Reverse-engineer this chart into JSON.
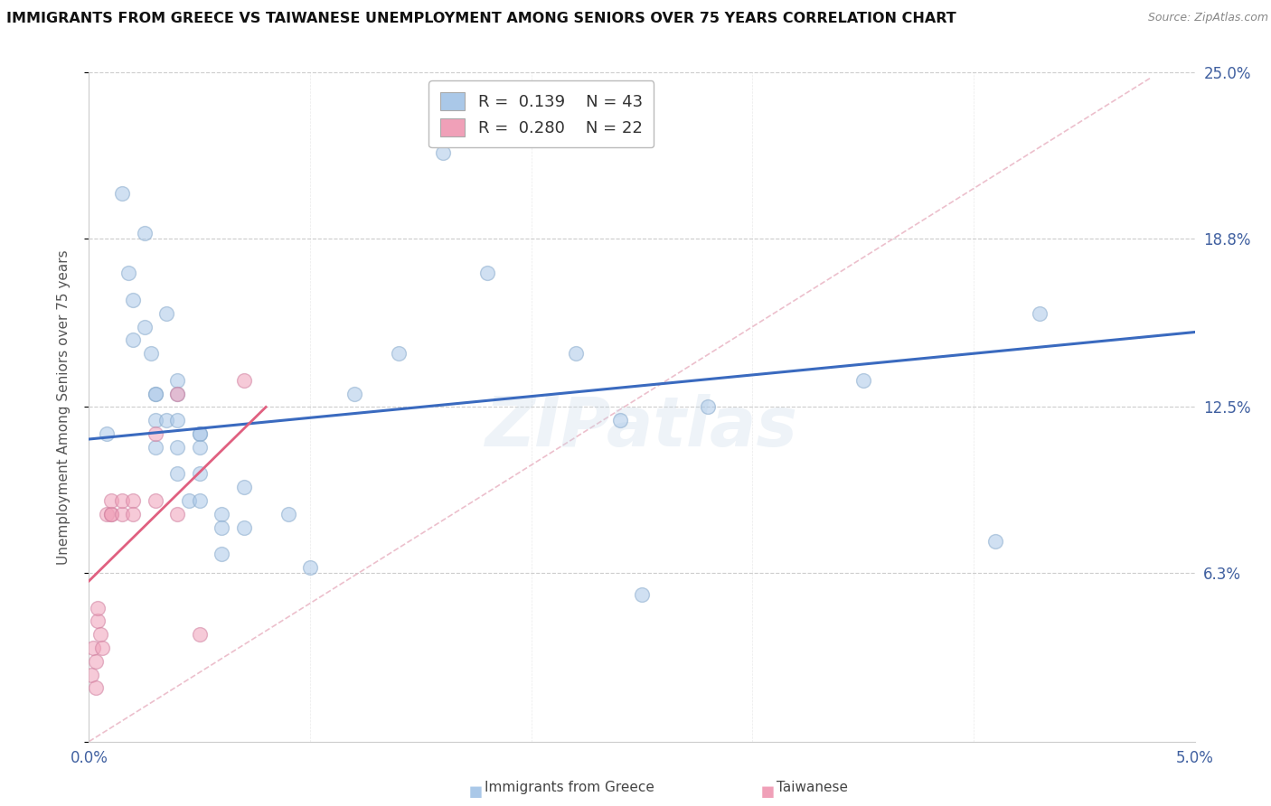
{
  "title": "IMMIGRANTS FROM GREECE VS TAIWANESE UNEMPLOYMENT AMONG SENIORS OVER 75 YEARS CORRELATION CHART",
  "source": "Source: ZipAtlas.com",
  "ylabel": "Unemployment Among Seniors over 75 years",
  "x_min": 0.0,
  "x_max": 0.05,
  "y_min": 0.0,
  "y_max": 0.25,
  "x_ticks": [
    0.0,
    0.01,
    0.02,
    0.03,
    0.04,
    0.05
  ],
  "x_tick_labels": [
    "0.0%",
    "",
    "",
    "",
    "",
    "5.0%"
  ],
  "y_ticks": [
    0.0,
    0.063,
    0.125,
    0.188,
    0.25
  ],
  "y_tick_labels_right": [
    "",
    "6.3%",
    "12.5%",
    "18.8%",
    "25.0%"
  ],
  "legend_line1": "R =  0.139    N = 43",
  "legend_line2": "R =  0.280    N = 22",
  "blue_scatter_x": [
    0.0008,
    0.0015,
    0.0018,
    0.002,
    0.002,
    0.0025,
    0.0025,
    0.0028,
    0.003,
    0.003,
    0.003,
    0.003,
    0.0035,
    0.0035,
    0.004,
    0.004,
    0.004,
    0.004,
    0.004,
    0.0045,
    0.005,
    0.005,
    0.005,
    0.005,
    0.005,
    0.006,
    0.006,
    0.006,
    0.007,
    0.007,
    0.009,
    0.01,
    0.012,
    0.014,
    0.016,
    0.018,
    0.022,
    0.024,
    0.025,
    0.028,
    0.035,
    0.041,
    0.043
  ],
  "blue_scatter_y": [
    0.115,
    0.205,
    0.175,
    0.165,
    0.15,
    0.19,
    0.155,
    0.145,
    0.13,
    0.13,
    0.12,
    0.11,
    0.16,
    0.12,
    0.135,
    0.13,
    0.12,
    0.11,
    0.1,
    0.09,
    0.115,
    0.115,
    0.11,
    0.1,
    0.09,
    0.085,
    0.08,
    0.07,
    0.095,
    0.08,
    0.085,
    0.065,
    0.13,
    0.145,
    0.22,
    0.175,
    0.145,
    0.12,
    0.055,
    0.125,
    0.135,
    0.075,
    0.16
  ],
  "pink_scatter_x": [
    0.0001,
    0.0002,
    0.0003,
    0.0003,
    0.0004,
    0.0004,
    0.0005,
    0.0006,
    0.0008,
    0.001,
    0.001,
    0.001,
    0.0015,
    0.0015,
    0.002,
    0.002,
    0.003,
    0.003,
    0.004,
    0.004,
    0.005,
    0.007
  ],
  "pink_scatter_y": [
    0.025,
    0.035,
    0.02,
    0.03,
    0.045,
    0.05,
    0.04,
    0.035,
    0.085,
    0.085,
    0.085,
    0.09,
    0.085,
    0.09,
    0.09,
    0.085,
    0.115,
    0.09,
    0.085,
    0.13,
    0.04,
    0.135
  ],
  "blue_trend_x": [
    0.0,
    0.05
  ],
  "blue_trend_y": [
    0.113,
    0.153
  ],
  "pink_trend_x": [
    0.0,
    0.008
  ],
  "pink_trend_y": [
    0.06,
    0.125
  ],
  "diag_line_x": [
    0.0,
    0.048
  ],
  "diag_line_y": [
    0.0,
    0.248
  ],
  "watermark": "ZIPatlas",
  "scatter_size": 130,
  "scatter_alpha": 0.55,
  "blue_color": "#aac8e8",
  "pink_color": "#f0a0b8",
  "blue_edge_color": "#88aacc",
  "pink_edge_color": "#d080a0",
  "blue_line_color": "#3a6abf",
  "pink_line_color": "#e06080",
  "diag_line_color": "#e8b0c0",
  "bg_color": "#ffffff",
  "grid_color": "#cccccc",
  "title_color": "#111111",
  "right_tick_color": "#4060a0",
  "bottom_tick_color": "#4060a0"
}
